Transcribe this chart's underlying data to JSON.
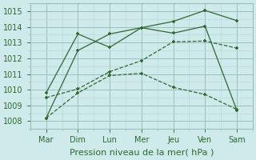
{
  "x_labels": [
    "Mar",
    "Dim",
    "Lun",
    "Mer",
    "Jeu",
    "Ven",
    "Sam"
  ],
  "x_values": [
    0,
    1,
    2,
    3,
    4,
    5,
    6
  ],
  "series": [
    {
      "name": "line_jagged1",
      "y": [
        1008.2,
        1012.5,
        1013.55,
        1013.95,
        1013.6,
        1014.05,
        1008.7
      ],
      "marker": "+"
    },
    {
      "name": "line_jagged2",
      "y": [
        1009.8,
        1013.55,
        1012.7,
        1013.95,
        1014.35,
        1015.05,
        1014.4
      ],
      "marker": "+"
    },
    {
      "name": "line_rising",
      "y": [
        1009.5,
        1010.05,
        1011.15,
        1011.85,
        1013.05,
        1013.1,
        1012.65
      ],
      "marker": "+"
    },
    {
      "name": "line_falling",
      "y": [
        1008.2,
        1009.8,
        1010.9,
        1011.05,
        1010.15,
        1009.7,
        1008.75
      ],
      "marker": "+"
    }
  ],
  "xlabel": "Pression niveau de la mer( hPa )",
  "ylim": [
    1007.6,
    1015.5
  ],
  "yticks": [
    1008,
    1009,
    1010,
    1011,
    1012,
    1013,
    1014,
    1015
  ],
  "bg_color": "#ceeaea",
  "grid_major_color": "#9bbfbf",
  "grid_minor_color": "#b8d8d8",
  "line_color": "#2d6a2d",
  "xlabel_fontsize": 8,
  "tick_fontsize": 7
}
